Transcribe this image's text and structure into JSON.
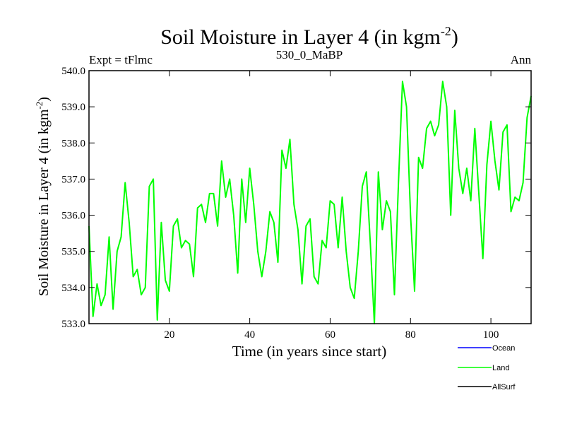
{
  "chart_data": {
    "type": "line",
    "title_main": "Soil Moisture in Layer 4 (in kgm",
    "title_sup": "-2",
    "title_close": ")",
    "subtitle_left": "Expt = tFlmc",
    "subtitle_center": "530_0_MaBP",
    "subtitle_right": "Ann",
    "xlabel": "Time (in years since start)",
    "ylabel_main": "Soil Moisture in Layer 4 (in kgm",
    "ylabel_sup": "-2",
    "ylabel_close": ")",
    "xlim": [
      0,
      110
    ],
    "ylim": [
      533.0,
      540.0
    ],
    "x_ticks": [
      {
        "value": 20,
        "label": "20"
      },
      {
        "value": 40,
        "label": "40"
      },
      {
        "value": 60,
        "label": "60"
      },
      {
        "value": 80,
        "label": "80"
      },
      {
        "value": 100,
        "label": "100"
      }
    ],
    "y_ticks": [
      {
        "value": 533.0,
        "label": "533.0"
      },
      {
        "value": 534.0,
        "label": "534.0"
      },
      {
        "value": 535.0,
        "label": "535.0"
      },
      {
        "value": 536.0,
        "label": "536.0"
      },
      {
        "value": 537.0,
        "label": "537.0"
      },
      {
        "value": 538.0,
        "label": "538.0"
      },
      {
        "value": 539.0,
        "label": "539.0"
      },
      {
        "value": 540.0,
        "label": "540.0"
      }
    ],
    "legend": [
      {
        "name": "Ocean",
        "color": "#0000ff"
      },
      {
        "name": "Land",
        "color": "#00ff00"
      },
      {
        "name": "AllSurf",
        "color": "#000000"
      }
    ],
    "series": [
      {
        "name": "Land",
        "color": "#00ff00",
        "x": [
          0,
          1,
          2,
          3,
          4,
          5,
          6,
          7,
          8,
          9,
          10,
          11,
          12,
          13,
          14,
          15,
          16,
          17,
          18,
          19,
          20,
          21,
          22,
          23,
          24,
          25,
          26,
          27,
          28,
          29,
          30,
          31,
          32,
          33,
          34,
          35,
          36,
          37,
          38,
          39,
          40,
          41,
          42,
          43,
          44,
          45,
          46,
          47,
          48,
          49,
          50,
          51,
          52,
          53,
          54,
          55,
          56,
          57,
          58,
          59,
          60,
          61,
          62,
          63,
          64,
          65,
          66,
          67,
          68,
          69,
          70,
          71,
          72,
          73,
          74,
          75,
          76,
          77,
          78,
          79,
          80,
          81,
          82,
          83,
          84,
          85,
          86,
          87,
          88,
          89,
          90,
          91,
          92,
          93,
          94,
          95,
          96,
          97,
          98,
          99,
          100,
          101,
          102,
          103,
          104,
          105,
          106,
          107,
          108,
          109,
          110
        ],
        "values": [
          535.7,
          533.2,
          534.1,
          533.5,
          533.8,
          535.4,
          533.4,
          535.0,
          535.4,
          536.9,
          535.8,
          534.3,
          534.5,
          533.8,
          534.0,
          536.8,
          537.0,
          533.1,
          535.8,
          534.2,
          533.9,
          535.7,
          535.9,
          535.1,
          535.3,
          535.2,
          534.3,
          536.2,
          536.3,
          535.8,
          536.6,
          536.6,
          535.7,
          537.5,
          536.5,
          537.0,
          536.0,
          534.4,
          537.0,
          535.8,
          537.3,
          536.3,
          535.0,
          534.3,
          535.0,
          536.1,
          535.8,
          534.7,
          537.8,
          537.3,
          538.1,
          536.3,
          535.6,
          534.1,
          535.7,
          535.9,
          534.3,
          534.1,
          535.3,
          535.1,
          536.4,
          536.3,
          535.1,
          536.5,
          535.0,
          534.0,
          533.7,
          535.0,
          536.8,
          537.2,
          535.2,
          533.0,
          537.2,
          535.6,
          536.4,
          536.1,
          533.8,
          536.9,
          539.7,
          539.0,
          536.0,
          533.9,
          537.6,
          537.3,
          538.4,
          538.6,
          538.2,
          538.5,
          539.7,
          539.0,
          536.0,
          538.9,
          537.3,
          536.6,
          537.3,
          536.4,
          538.4,
          536.6,
          534.8,
          537.4,
          538.6,
          537.5,
          536.7,
          538.3,
          538.5,
          536.1,
          536.5,
          536.4,
          536.9,
          538.7,
          539.3
        ]
      }
    ]
  }
}
